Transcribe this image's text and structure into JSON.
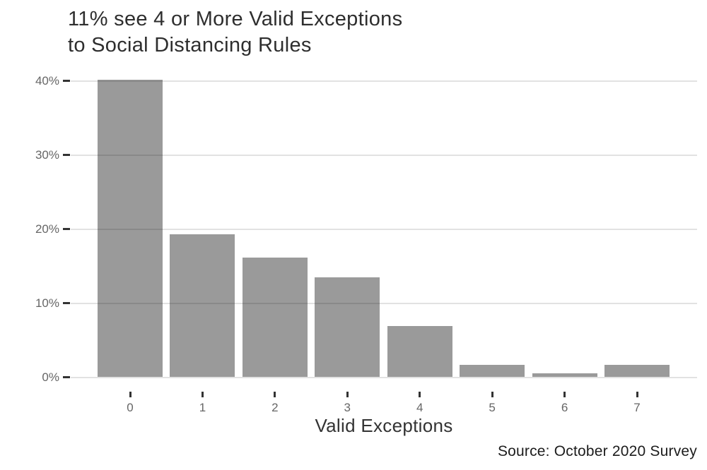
{
  "chart_data": {
    "type": "bar",
    "title": "11% see 4 or More Valid Exceptions\nto Social Distancing Rules",
    "xlabel": "Valid Exceptions",
    "ylabel": "",
    "caption": "Source: October 2020 Survey",
    "categories": [
      "0",
      "1",
      "2",
      "3",
      "4",
      "5",
      "6",
      "7"
    ],
    "values": [
      40.2,
      19.3,
      16.2,
      13.5,
      6.9,
      1.7,
      0.5,
      1.7
    ],
    "unit": "%",
    "y_ticks": [
      {
        "value": 0,
        "label": "0%"
      },
      {
        "value": 10,
        "label": "10%"
      },
      {
        "value": 20,
        "label": "20%"
      },
      {
        "value": 30,
        "label": "30%"
      },
      {
        "value": 40,
        "label": "40%"
      }
    ],
    "ylim": [
      0,
      42
    ],
    "grid": "horizontal major gridlines only, drawn over bars",
    "legend": "none"
  },
  "colors": {
    "bar": "#9A9A9A",
    "grid": "#111111",
    "grid_opacity": 0.12,
    "tick_mark": "#333333",
    "tick_label": "#666666",
    "title": "#2E2E2E",
    "axis_title": "#333333",
    "caption": "#1C1C1C",
    "background": "#FFFFFF"
  }
}
